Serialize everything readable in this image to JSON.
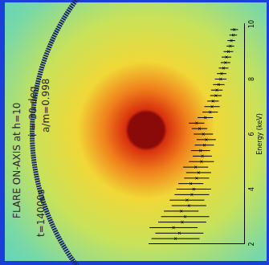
{
  "chart_data": {
    "type": "scatter",
    "annotations": [
      "FLARE ON-AXIS at h=10",
      "i = 30 deg",
      "a/m=0.998",
      "t=14000s"
    ],
    "xlabel": "Energy (keV)",
    "x": [
      2.2,
      2.4,
      2.6,
      2.8,
      3.0,
      3.2,
      3.4,
      3.6,
      3.8,
      4.0,
      4.2,
      4.4,
      4.6,
      4.8,
      5.0,
      5.2,
      5.4,
      5.6,
      5.8,
      6.0,
      6.2,
      6.4,
      6.6,
      6.8,
      7.0,
      7.2,
      7.4,
      7.6,
      7.8,
      8.0,
      8.2,
      8.4,
      8.6,
      8.8,
      9.0,
      9.2,
      9.4,
      9.6,
      9.8
    ],
    "values": [
      72,
      68,
      74,
      65,
      62,
      66,
      58,
      60,
      55,
      53,
      56,
      50,
      48,
      51,
      45,
      44,
      46,
      42,
      40,
      43,
      47,
      50,
      41,
      36,
      34,
      33,
      30,
      29,
      27,
      25,
      24,
      22,
      20,
      19,
      17,
      15,
      14,
      12,
      11
    ],
    "y_errors": [
      25,
      25,
      25,
      25,
      25,
      18,
      18,
      18,
      18,
      18,
      13,
      13,
      13,
      13,
      13,
      10,
      10,
      10,
      10,
      10,
      8,
      8,
      8,
      8,
      8,
      6,
      6,
      6,
      6,
      6,
      5,
      5,
      5,
      5,
      5,
      4,
      4,
      4,
      4
    ],
    "xlim": [
      2,
      10
    ],
    "xticks": [
      2,
      4,
      6,
      8,
      10
    ],
    "ylim": [
      0,
      100
    ],
    "tick_labels": "x",
    "grid": false,
    "color": "#000000",
    "marker": "cross"
  }
}
